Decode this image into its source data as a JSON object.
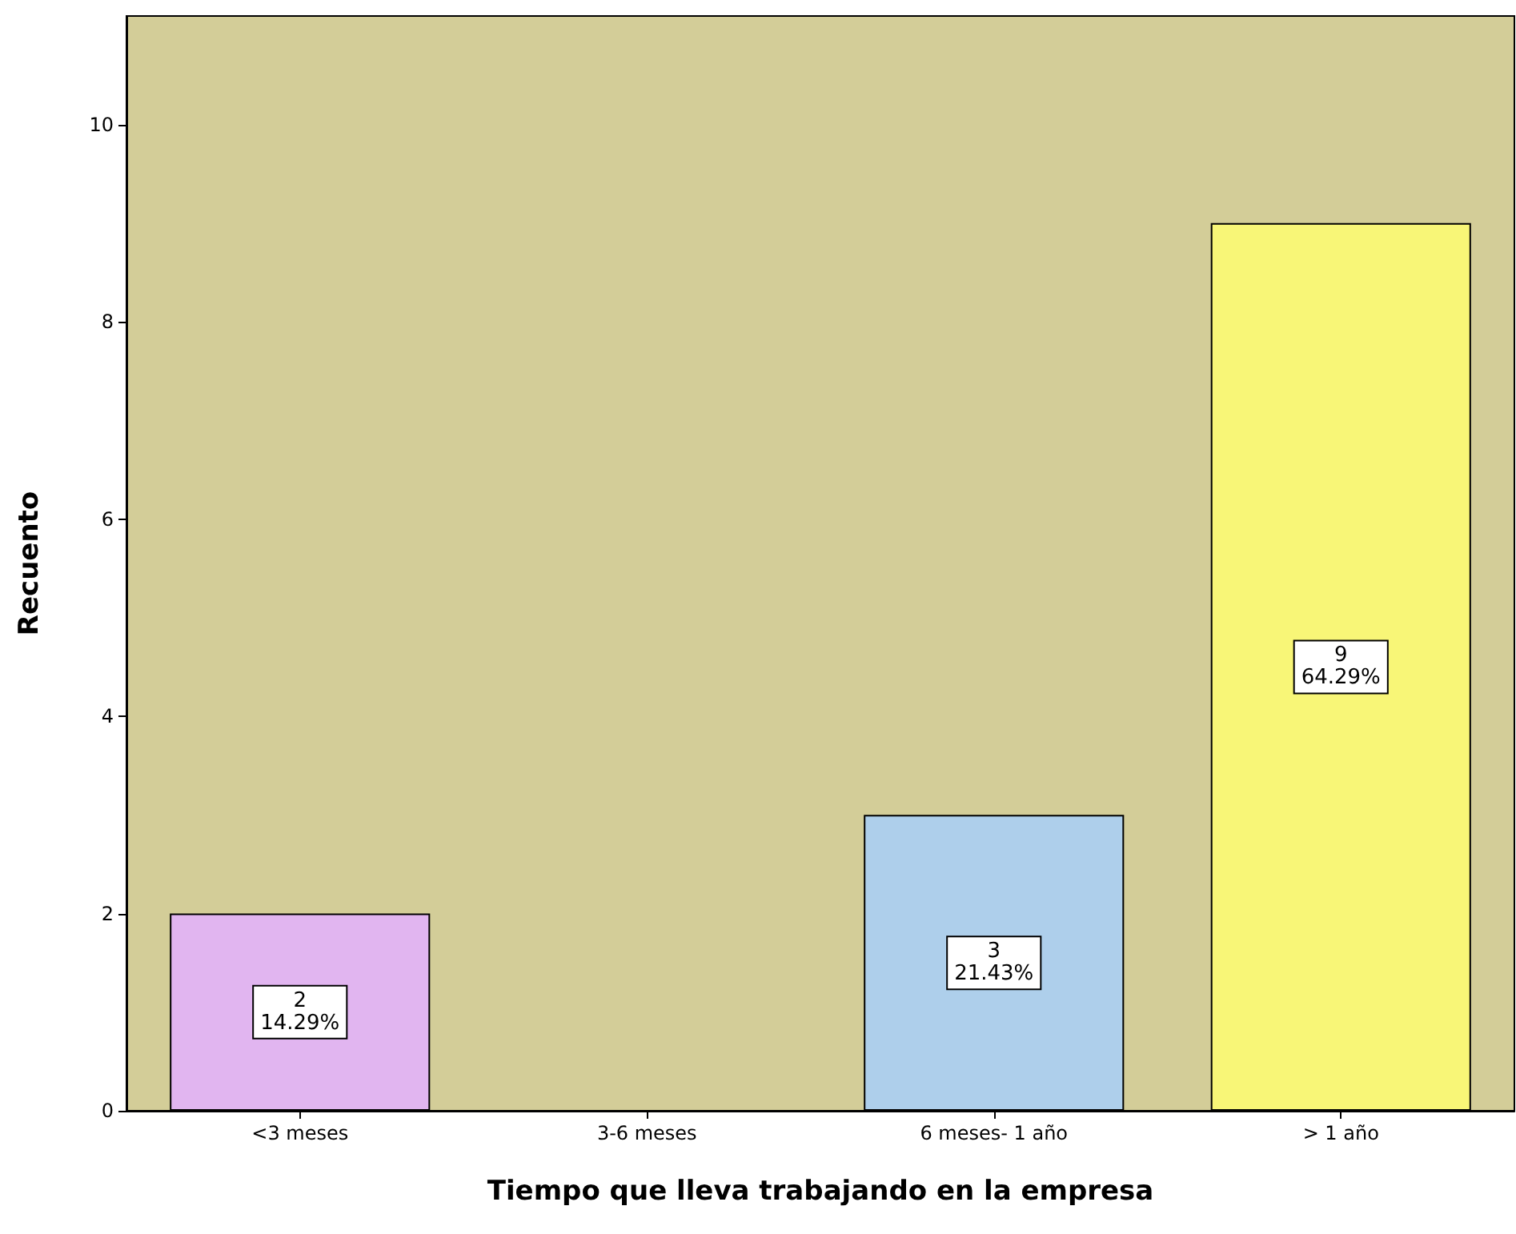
{
  "chart_data": {
    "type": "bar",
    "xlabel": "Tiempo que lleva trabajando en la empresa",
    "ylabel": "Recuento",
    "categories": [
      "<3 meses",
      "3-6 meses",
      "6 meses- 1 año",
      "> 1 año"
    ],
    "values": [
      2,
      0,
      3,
      9
    ],
    "colors": [
      "#e1b5f0",
      "#d3cd98",
      "#aecfeb",
      "#f8f677"
    ],
    "value_labels": [
      "2\n14.29%",
      null,
      "3\n21.43%",
      "9\n64.29%"
    ],
    "ylim": [
      0,
      11.1
    ],
    "yticks": [
      0,
      2,
      4,
      6,
      8,
      10
    ],
    "grid": false
  }
}
